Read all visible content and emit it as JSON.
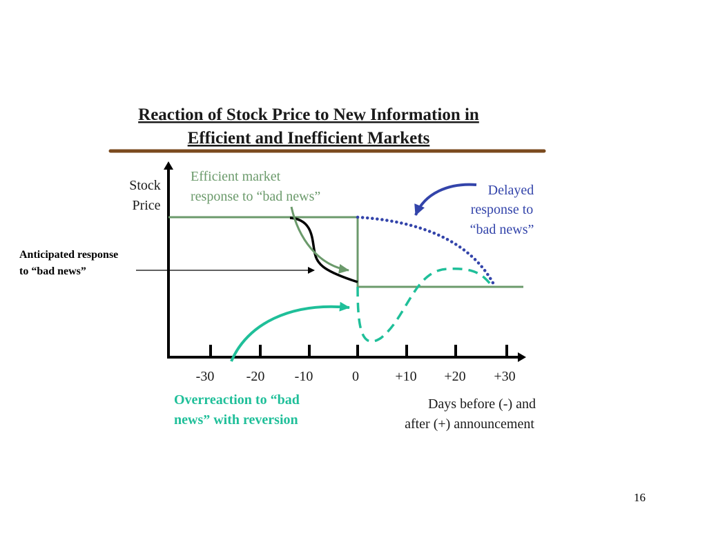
{
  "title": {
    "line1": "Reaction of Stock Price to New Information in",
    "line2": "Efficient and Inefficient Markets"
  },
  "labels": {
    "y_axis_line1": "Stock",
    "y_axis_line2": "Price",
    "x_axis_line1": "Days before (-) and",
    "x_axis_line2": "after (+) announcement",
    "efficient_line1": "Efficient market",
    "efficient_line2": "response to “bad news”",
    "delayed_line1": "Delayed",
    "delayed_line2": "response to",
    "delayed_line3": "“bad news”",
    "overreaction_line1": "Overreaction to “bad",
    "overreaction_line2": "news” with reversion",
    "anticipated_line1": "Anticipated response",
    "anticipated_line2": "to “bad news”"
  },
  "x_ticks": [
    "-30",
    "-20",
    "-10",
    "0",
    "+10",
    "+20",
    "+30"
  ],
  "page_number": "16",
  "colors": {
    "efficient_green": "#6b9a6b",
    "delayed_blue": "#3344aa",
    "overreaction_teal": "#1fbf99",
    "title_rule": "#7a4a1e"
  }
}
